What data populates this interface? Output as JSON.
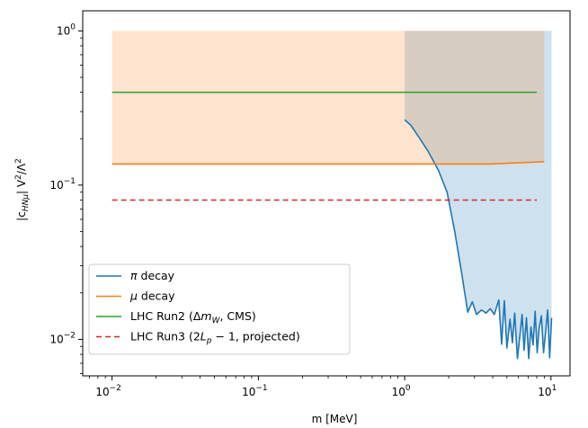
{
  "chart_data": {
    "type": "line",
    "xlabel": "m [MeV]",
    "ylabel": "|c_HNμ| V²/Λ²",
    "xscale": "log",
    "yscale": "log",
    "xlim": [
      0.0063,
      13.5
    ],
    "ylim": [
      0.0058,
      1.35
    ],
    "grid": false,
    "legend_position": "lower-left",
    "x_ticks": [
      {
        "value": 0.01,
        "base": "10",
        "exp": "−2"
      },
      {
        "value": 0.1,
        "base": "10",
        "exp": "−1"
      },
      {
        "value": 1,
        "base": "10",
        "exp": "0"
      },
      {
        "value": 10,
        "base": "10",
        "exp": "1"
      }
    ],
    "y_ticks": [
      {
        "value": 0.01,
        "base": "10",
        "exp": "−2"
      },
      {
        "value": 0.1,
        "base": "10",
        "exp": "−1"
      },
      {
        "value": 1,
        "base": "10",
        "exp": "0"
      }
    ],
    "series": [
      {
        "name": "π decay",
        "color": "#1f77b4",
        "style": "solid",
        "fill_to": 1.0,
        "fill_color": "#1f77b4",
        "fill_opacity": 0.22,
        "points": [
          [
            1.0,
            0.265
          ],
          [
            1.1,
            0.245
          ],
          [
            1.25,
            0.205
          ],
          [
            1.45,
            0.165
          ],
          [
            1.7,
            0.125
          ],
          [
            1.95,
            0.09
          ],
          [
            2.2,
            0.05
          ],
          [
            2.45,
            0.027
          ],
          [
            2.7,
            0.015
          ],
          [
            2.9,
            0.0175
          ],
          [
            3.1,
            0.0145
          ],
          [
            3.35,
            0.0155
          ],
          [
            3.6,
            0.0148
          ],
          [
            3.85,
            0.0158
          ],
          [
            4.1,
            0.0145
          ],
          [
            4.4,
            0.018
          ],
          [
            4.6,
            0.0093
          ],
          [
            4.8,
            0.0178
          ],
          [
            5.0,
            0.0088
          ],
          [
            5.25,
            0.0135
          ],
          [
            5.45,
            0.0095
          ],
          [
            5.65,
            0.0148
          ],
          [
            5.9,
            0.0075
          ],
          [
            6.15,
            0.0108
          ],
          [
            6.35,
            0.0145
          ],
          [
            6.55,
            0.0085
          ],
          [
            6.8,
            0.0138
          ],
          [
            7.05,
            0.0075
          ],
          [
            7.3,
            0.012
          ],
          [
            7.55,
            0.0092
          ],
          [
            7.8,
            0.0152
          ],
          [
            8.05,
            0.0082
          ],
          [
            8.3,
            0.0118
          ],
          [
            8.6,
            0.0142
          ],
          [
            8.9,
            0.0082
          ],
          [
            9.2,
            0.0112
          ],
          [
            9.5,
            0.0155
          ],
          [
            9.8,
            0.0076
          ],
          [
            10.1,
            0.0138
          ]
        ]
      },
      {
        "name": "μ decay",
        "color": "#ff7f0e",
        "style": "solid",
        "fill_to": 1.0,
        "fill_color": "#ff7f0e",
        "fill_opacity": 0.2,
        "points": [
          [
            0.01,
            0.137
          ],
          [
            3.8,
            0.137
          ],
          [
            9.0,
            0.142
          ]
        ]
      },
      {
        "name": "LHC Run2 (Δm_W, CMS)",
        "color": "#2ca02c",
        "style": "solid",
        "points": [
          [
            0.01,
            0.4
          ],
          [
            8.0,
            0.4
          ]
        ]
      },
      {
        "name": "LHC Run3 (2L_p − 1, projected)",
        "color": "#d62728",
        "style": "dashed",
        "points": [
          [
            0.01,
            0.08
          ],
          [
            8.0,
            0.08
          ]
        ]
      }
    ]
  }
}
